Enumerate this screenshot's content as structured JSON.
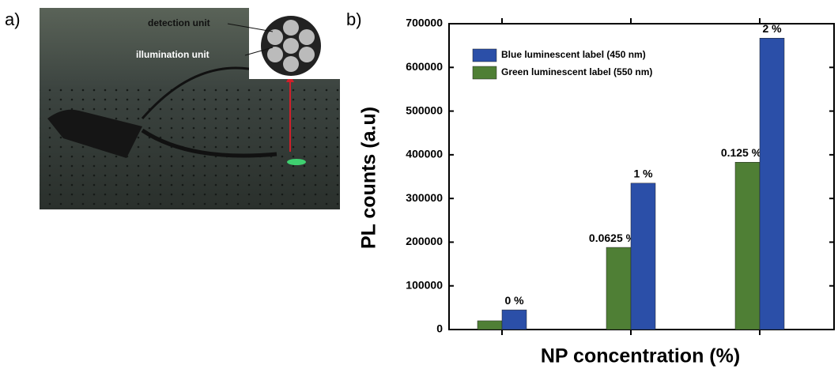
{
  "panel_labels": [
    "a)",
    "b)"
  ],
  "photo": {
    "labels": [
      "detection unit",
      "illumination unit"
    ]
  },
  "chart_data": {
    "type": "bar",
    "categories": [
      null,
      null,
      null
    ],
    "xlabel": "NP concentration (%)",
    "ylabel": "PL counts (a.u)",
    "series": [
      {
        "name": "Green luminescent label (550 nm)",
        "color": "#4f7f35",
        "values": [
          20000,
          188000,
          383000
        ],
        "bar_labels": [
          null,
          "0.0625 %",
          "0.125 %"
        ]
      },
      {
        "name": "Blue luminescent label (450 nm)",
        "color": "#2b4fa8",
        "values": [
          45000,
          335000,
          667000
        ],
        "bar_labels": [
          "0 %",
          "1 %",
          "2 %"
        ]
      }
    ],
    "legend_order": [
      1,
      0
    ],
    "ylim": [
      0,
      700000
    ],
    "yticks": [
      0,
      100000,
      200000,
      300000,
      400000,
      500000,
      600000,
      700000
    ],
    "grid": false
  }
}
